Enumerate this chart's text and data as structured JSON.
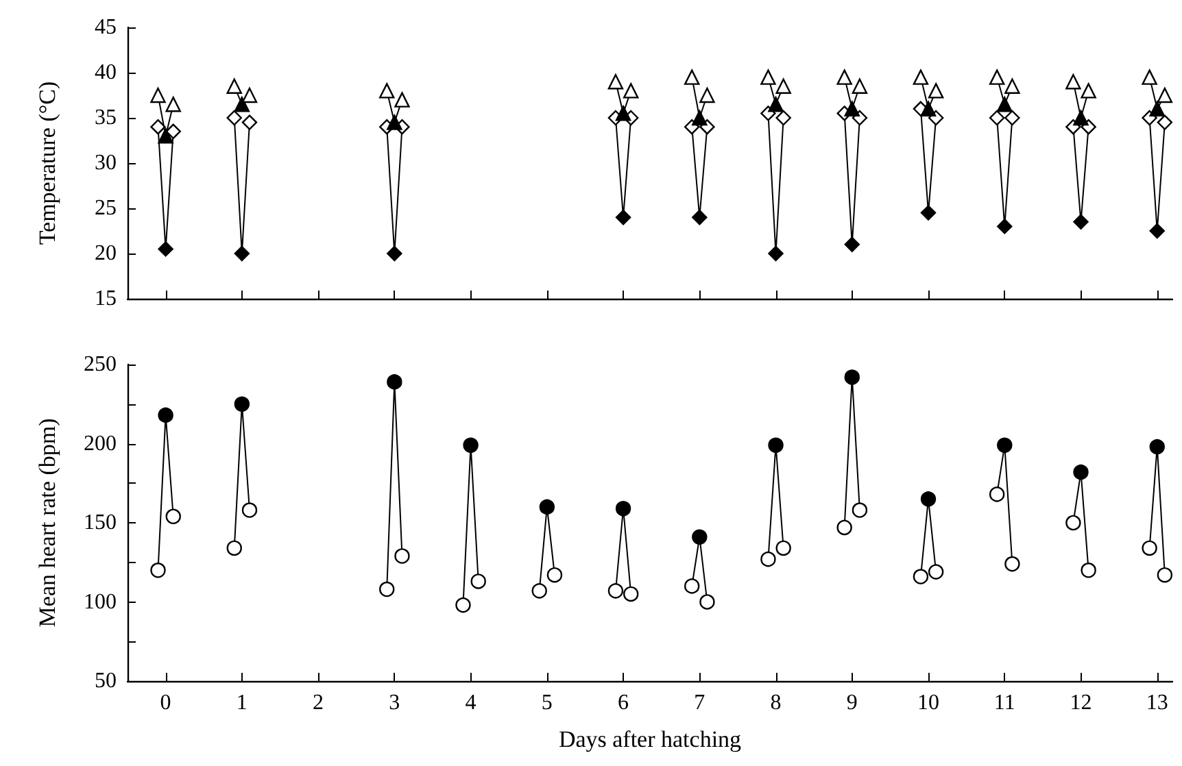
{
  "chart_data": [
    {
      "type": "line",
      "ylabel": "Temperature (°C)",
      "xlim": [
        -0.5,
        13.2
      ],
      "xticks": [
        0,
        1,
        2,
        3,
        4,
        5,
        6,
        7,
        8,
        9,
        10,
        11,
        12,
        13
      ],
      "ylim": [
        15,
        45
      ],
      "yticks": [
        15,
        20,
        25,
        30,
        35,
        40,
        45
      ],
      "tick_labels": "y",
      "line_style": "solid",
      "series": [
        {
          "marker": "triangle",
          "color": "#000000",
          "x": [
            -0.1,
            0,
            0.1
          ],
          "values": [
            37.5,
            33,
            36.5
          ],
          "colors": [
            "#ffffff",
            "#000000",
            "#ffffff"
          ]
        },
        {
          "marker": "diamond",
          "color": "#000000",
          "x": [
            -0.1,
            0,
            0.1
          ],
          "values": [
            34,
            20.5,
            33.5
          ],
          "colors": [
            "#ffffff",
            "#000000",
            "#ffffff"
          ]
        },
        {
          "marker": "triangle",
          "color": "#000000",
          "x": [
            0.9,
            1,
            1.1
          ],
          "values": [
            38.5,
            36.5,
            37.5
          ],
          "colors": [
            "#ffffff",
            "#000000",
            "#ffffff"
          ]
        },
        {
          "marker": "diamond",
          "color": "#000000",
          "x": [
            0.9,
            1,
            1.1
          ],
          "values": [
            35,
            20,
            34.5
          ],
          "colors": [
            "#ffffff",
            "#000000",
            "#ffffff"
          ]
        },
        {
          "marker": "triangle",
          "color": "#000000",
          "x": [
            2.9,
            3,
            3.1
          ],
          "values": [
            38,
            34.5,
            37
          ],
          "colors": [
            "#ffffff",
            "#000000",
            "#ffffff"
          ]
        },
        {
          "marker": "diamond",
          "color": "#000000",
          "x": [
            2.9,
            3,
            3.1
          ],
          "values": [
            34,
            20,
            34
          ],
          "colors": [
            "#ffffff",
            "#000000",
            "#ffffff"
          ]
        },
        {
          "marker": "triangle",
          "color": "#000000",
          "x": [
            5.9,
            6,
            6.1
          ],
          "values": [
            39,
            35.5,
            38
          ],
          "colors": [
            "#ffffff",
            "#000000",
            "#ffffff"
          ]
        },
        {
          "marker": "diamond",
          "color": "#000000",
          "x": [
            5.9,
            6,
            6.1
          ],
          "values": [
            35,
            24,
            35
          ],
          "colors": [
            "#ffffff",
            "#000000",
            "#ffffff"
          ]
        },
        {
          "marker": "triangle",
          "color": "#000000",
          "x": [
            6.9,
            7,
            7.1
          ],
          "values": [
            39.5,
            35,
            37.5
          ],
          "colors": [
            "#ffffff",
            "#000000",
            "#ffffff"
          ]
        },
        {
          "marker": "diamond",
          "color": "#000000",
          "x": [
            6.9,
            7,
            7.1
          ],
          "values": [
            34,
            24,
            34
          ],
          "colors": [
            "#ffffff",
            "#000000",
            "#ffffff"
          ]
        },
        {
          "marker": "triangle",
          "color": "#000000",
          "x": [
            7.9,
            8,
            8.1
          ],
          "values": [
            39.5,
            36.5,
            38.5
          ],
          "colors": [
            "#ffffff",
            "#000000",
            "#ffffff"
          ]
        },
        {
          "marker": "diamond",
          "color": "#000000",
          "x": [
            7.9,
            8,
            8.1
          ],
          "values": [
            35.5,
            20,
            35
          ],
          "colors": [
            "#ffffff",
            "#000000",
            "#ffffff"
          ]
        },
        {
          "marker": "triangle",
          "color": "#000000",
          "x": [
            8.9,
            9,
            9.1
          ],
          "values": [
            39.5,
            36,
            38.5
          ],
          "colors": [
            "#ffffff",
            "#000000",
            "#ffffff"
          ]
        },
        {
          "marker": "diamond",
          "color": "#000000",
          "x": [
            8.9,
            9,
            9.1
          ],
          "values": [
            35.5,
            21,
            35
          ],
          "colors": [
            "#ffffff",
            "#000000",
            "#ffffff"
          ]
        },
        {
          "marker": "triangle",
          "color": "#000000",
          "x": [
            9.9,
            10,
            10.1
          ],
          "values": [
            39.5,
            36,
            38
          ],
          "colors": [
            "#ffffff",
            "#000000",
            "#ffffff"
          ]
        },
        {
          "marker": "diamond",
          "color": "#000000",
          "x": [
            9.9,
            10,
            10.1
          ],
          "values": [
            36,
            24.5,
            35
          ],
          "colors": [
            "#ffffff",
            "#000000",
            "#ffffff"
          ]
        },
        {
          "marker": "triangle",
          "color": "#000000",
          "x": [
            10.9,
            11,
            11.1
          ],
          "values": [
            39.5,
            36.5,
            38.5
          ],
          "colors": [
            "#ffffff",
            "#000000",
            "#ffffff"
          ]
        },
        {
          "marker": "diamond",
          "color": "#000000",
          "x": [
            10.9,
            11,
            11.1
          ],
          "values": [
            35,
            23,
            35
          ],
          "colors": [
            "#ffffff",
            "#000000",
            "#ffffff"
          ]
        },
        {
          "marker": "triangle",
          "color": "#000000",
          "x": [
            11.9,
            12,
            12.1
          ],
          "values": [
            39,
            35,
            38
          ],
          "colors": [
            "#ffffff",
            "#000000",
            "#ffffff"
          ]
        },
        {
          "marker": "diamond",
          "color": "#000000",
          "x": [
            11.9,
            12,
            12.1
          ],
          "values": [
            34,
            23.5,
            34
          ],
          "colors": [
            "#ffffff",
            "#000000",
            "#ffffff"
          ]
        },
        {
          "marker": "triangle",
          "color": "#000000",
          "x": [
            12.9,
            13,
            13.1
          ],
          "values": [
            39.5,
            36,
            37.5
          ],
          "colors": [
            "#ffffff",
            "#000000",
            "#ffffff"
          ]
        },
        {
          "marker": "diamond",
          "color": "#000000",
          "x": [
            12.9,
            13,
            13.1
          ],
          "values": [
            35,
            22.5,
            34.5
          ],
          "colors": [
            "#ffffff",
            "#000000",
            "#ffffff"
          ]
        }
      ]
    },
    {
      "type": "line",
      "xlabel": "Days after hatching",
      "ylabel": "Mean heart rate (bpm)",
      "xlim": [
        -0.5,
        13.2
      ],
      "xticks": [
        0,
        1,
        2,
        3,
        4,
        5,
        6,
        7,
        8,
        9,
        10,
        11,
        12,
        13
      ],
      "ylim": [
        50,
        250
      ],
      "yticks": [
        50,
        {
          "value": 75,
          "label": null
        },
        100,
        {
          "value": 125,
          "label": null
        },
        150,
        {
          "value": 175,
          "label": null
        },
        200,
        {
          "value": 225,
          "label": null
        },
        250
      ],
      "line_style": "solid",
      "series": [
        {
          "marker": "circle",
          "color": "#000000",
          "x": [
            -0.1,
            0,
            0.1
          ],
          "values": [
            120,
            218,
            154
          ],
          "colors": [
            "#ffffff",
            "#000000",
            "#ffffff"
          ]
        },
        {
          "marker": "circle",
          "color": "#000000",
          "x": [
            0.9,
            1,
            1.1
          ],
          "values": [
            134,
            225,
            158
          ],
          "colors": [
            "#ffffff",
            "#000000",
            "#ffffff"
          ]
        },
        {
          "marker": "circle",
          "color": "#000000",
          "x": [
            2.9,
            3,
            3.1
          ],
          "values": [
            108,
            239,
            129
          ],
          "colors": [
            "#ffffff",
            "#000000",
            "#ffffff"
          ]
        },
        {
          "marker": "circle",
          "color": "#000000",
          "x": [
            3.9,
            4,
            4.1
          ],
          "values": [
            98,
            199,
            113
          ],
          "colors": [
            "#ffffff",
            "#000000",
            "#ffffff"
          ]
        },
        {
          "marker": "circle",
          "color": "#000000",
          "x": [
            4.9,
            5,
            5.1
          ],
          "values": [
            107,
            160,
            117
          ],
          "colors": [
            "#ffffff",
            "#000000",
            "#ffffff"
          ]
        },
        {
          "marker": "circle",
          "color": "#000000",
          "x": [
            5.9,
            6,
            6.1
          ],
          "values": [
            107,
            159,
            105
          ],
          "colors": [
            "#ffffff",
            "#000000",
            "#ffffff"
          ]
        },
        {
          "marker": "circle",
          "color": "#000000",
          "x": [
            6.9,
            7,
            7.1
          ],
          "values": [
            110,
            141,
            100
          ],
          "colors": [
            "#ffffff",
            "#000000",
            "#ffffff"
          ]
        },
        {
          "marker": "circle",
          "color": "#000000",
          "x": [
            7.9,
            8,
            8.1
          ],
          "values": [
            127,
            199,
            134
          ],
          "colors": [
            "#ffffff",
            "#000000",
            "#ffffff"
          ]
        },
        {
          "marker": "circle",
          "color": "#000000",
          "x": [
            8.9,
            9,
            9.1
          ],
          "values": [
            147,
            242,
            158
          ],
          "colors": [
            "#ffffff",
            "#000000",
            "#ffffff"
          ]
        },
        {
          "marker": "circle",
          "color": "#000000",
          "x": [
            9.9,
            10,
            10.1
          ],
          "values": [
            116,
            165,
            119
          ],
          "colors": [
            "#ffffff",
            "#000000",
            "#ffffff"
          ]
        },
        {
          "marker": "circle",
          "color": "#000000",
          "x": [
            10.9,
            11,
            11.1
          ],
          "values": [
            168,
            199,
            124
          ],
          "colors": [
            "#ffffff",
            "#000000",
            "#ffffff"
          ]
        },
        {
          "marker": "circle",
          "color": "#000000",
          "x": [
            11.9,
            12,
            12.1
          ],
          "values": [
            150,
            182,
            120
          ],
          "colors": [
            "#ffffff",
            "#000000",
            "#ffffff"
          ]
        },
        {
          "marker": "circle",
          "color": "#000000",
          "x": [
            12.9,
            13,
            13.1
          ],
          "values": [
            134,
            198,
            117
          ],
          "colors": [
            "#ffffff",
            "#000000",
            "#ffffff"
          ]
        }
      ]
    }
  ]
}
